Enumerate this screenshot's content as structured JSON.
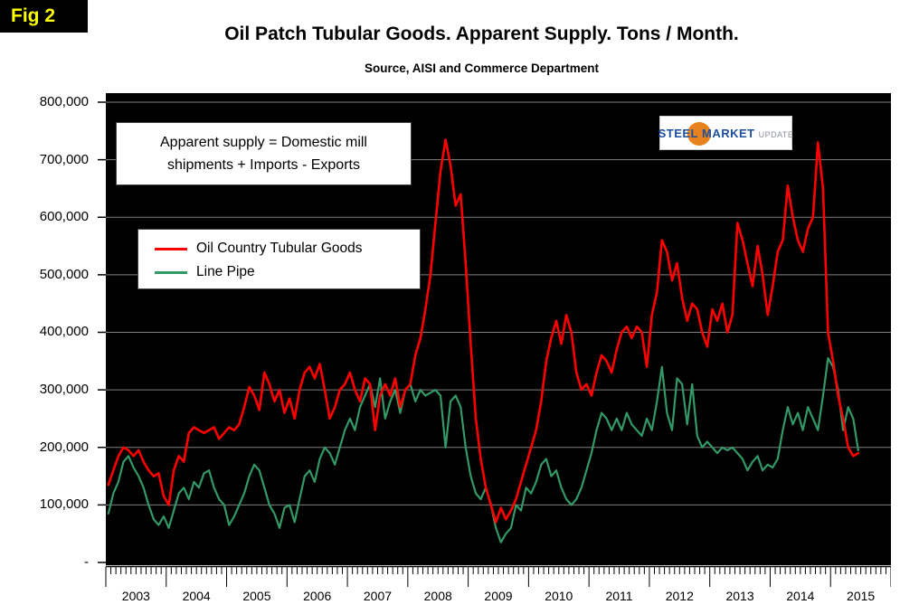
{
  "figure_label": "Fig 2",
  "annotation": {
    "line1": "Apparent supply = Domestic mill",
    "line2": "shipments + Imports - Exports"
  },
  "logo": {
    "steel": "STEEL",
    "market": "MARKET",
    "update": "UPDATE"
  },
  "chart_data": {
    "type": "line",
    "title": "Oil Patch Tubular Goods. Apparent Supply. Tons / Month.",
    "subtitle": "Source, AISI and Commerce Department",
    "ylabel": "Tons / Month",
    "ylim": [
      0,
      800000
    ],
    "ytick_step": 100000,
    "ytick_labels": [
      "800,000",
      "700,000",
      "600,000",
      "500,000",
      "400,000",
      "300,000",
      "200,000",
      "100,000",
      "-"
    ],
    "x_unit": "month",
    "x_frequency": "monthly",
    "x_start": "2003-01",
    "x_end": "2015-06",
    "x_axis_span_months": 156,
    "year_labels": [
      "2003",
      "2004",
      "2005",
      "2006",
      "2007",
      "2008",
      "2009",
      "2010",
      "2011",
      "2012",
      "2013",
      "2014",
      "2015"
    ],
    "grid": "horizontal",
    "plot_background": "#000000",
    "grid_color": "#808080",
    "legend_position": "inside-left",
    "series": [
      {
        "name": "Oil Country Tubular Goods",
        "color": "#ff0000",
        "values": [
          135000,
          160000,
          185000,
          200000,
          195000,
          185000,
          195000,
          175000,
          160000,
          150000,
          155000,
          115000,
          100000,
          160000,
          185000,
          175000,
          225000,
          235000,
          230000,
          225000,
          230000,
          235000,
          215000,
          225000,
          235000,
          230000,
          240000,
          270000,
          305000,
          290000,
          265000,
          330000,
          310000,
          280000,
          300000,
          260000,
          285000,
          250000,
          300000,
          330000,
          340000,
          320000,
          345000,
          300000,
          250000,
          270000,
          300000,
          310000,
          330000,
          300000,
          280000,
          320000,
          310000,
          230000,
          290000,
          310000,
          290000,
          320000,
          270000,
          300000,
          310000,
          360000,
          390000,
          440000,
          500000,
          590000,
          680000,
          735000,
          690000,
          620000,
          640000,
          520000,
          380000,
          250000,
          180000,
          130000,
          100000,
          70000,
          95000,
          75000,
          90000,
          110000,
          140000,
          170000,
          200000,
          230000,
          280000,
          350000,
          390000,
          420000,
          380000,
          430000,
          400000,
          330000,
          300000,
          310000,
          290000,
          330000,
          360000,
          350000,
          330000,
          370000,
          400000,
          410000,
          390000,
          410000,
          400000,
          340000,
          430000,
          470000,
          560000,
          540000,
          490000,
          520000,
          460000,
          420000,
          450000,
          440000,
          400000,
          375000,
          440000,
          420000,
          450000,
          400000,
          430000,
          590000,
          560000,
          520000,
          480000,
          550000,
          500000,
          430000,
          480000,
          540000,
          560000,
          655000,
          600000,
          560000,
          540000,
          580000,
          600000,
          730000,
          650000,
          400000,
          350000,
          290000,
          250000,
          200000,
          185000,
          190000
        ]
      },
      {
        "name": "Line Pipe",
        "color": "#339966",
        "values": [
          85000,
          120000,
          140000,
          175000,
          185000,
          165000,
          150000,
          130000,
          100000,
          75000,
          65000,
          80000,
          60000,
          90000,
          120000,
          130000,
          110000,
          140000,
          130000,
          155000,
          160000,
          130000,
          110000,
          100000,
          65000,
          80000,
          100000,
          120000,
          150000,
          170000,
          160000,
          130000,
          100000,
          85000,
          60000,
          95000,
          100000,
          70000,
          110000,
          150000,
          160000,
          140000,
          180000,
          200000,
          190000,
          170000,
          200000,
          230000,
          250000,
          230000,
          270000,
          290000,
          310000,
          270000,
          320000,
          250000,
          280000,
          300000,
          260000,
          300000,
          310000,
          280000,
          300000,
          290000,
          295000,
          300000,
          290000,
          200000,
          280000,
          290000,
          270000,
          200000,
          150000,
          120000,
          110000,
          130000,
          100000,
          60000,
          35000,
          50000,
          60000,
          100000,
          90000,
          130000,
          120000,
          140000,
          170000,
          180000,
          150000,
          160000,
          130000,
          110000,
          100000,
          110000,
          130000,
          160000,
          190000,
          230000,
          260000,
          250000,
          230000,
          250000,
          230000,
          260000,
          240000,
          230000,
          220000,
          250000,
          230000,
          280000,
          340000,
          260000,
          230000,
          320000,
          310000,
          240000,
          310000,
          220000,
          200000,
          210000,
          200000,
          190000,
          200000,
          195000,
          200000,
          190000,
          180000,
          160000,
          175000,
          185000,
          160000,
          170000,
          165000,
          180000,
          230000,
          270000,
          240000,
          260000,
          230000,
          270000,
          250000,
          230000,
          290000,
          355000,
          340000,
          300000,
          230000,
          270000,
          250000,
          195000
        ]
      }
    ]
  }
}
